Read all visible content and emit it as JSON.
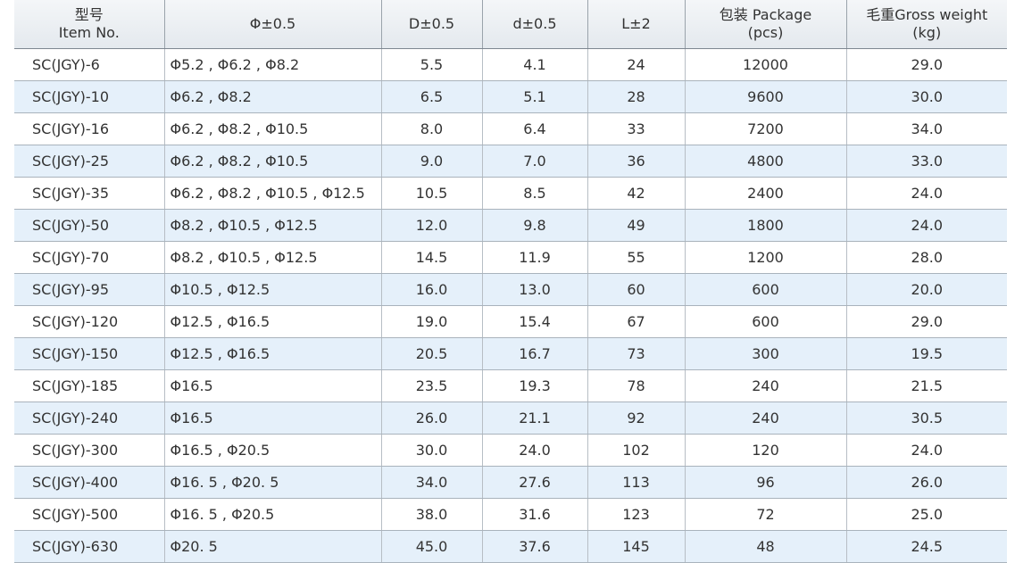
{
  "table": {
    "header": [
      [
        "型号",
        "Item No."
      ],
      [
        "Φ±0.5"
      ],
      [
        "D±0.5"
      ],
      [
        "d±0.5"
      ],
      [
        "L±2"
      ],
      [
        "包装 Package",
        "(pcs)"
      ],
      [
        "毛重Gross weight",
        "(kg)"
      ]
    ],
    "rows": [
      [
        "SC(JGY)-6",
        "Φ5.2 , Φ6.2 , Φ8.2",
        "5.5",
        "4.1",
        "24",
        "12000",
        "29.0"
      ],
      [
        "SC(JGY)-10",
        "Φ6.2 , Φ8.2",
        "6.5",
        "5.1",
        "28",
        "9600",
        "30.0"
      ],
      [
        "SC(JGY)-16",
        "Φ6.2 , Φ8.2 , Φ10.5",
        "8.0",
        "6.4",
        "33",
        "7200",
        "34.0"
      ],
      [
        "SC(JGY)-25",
        "Φ6.2 , Φ8.2 , Φ10.5",
        "9.0",
        "7.0",
        "36",
        "4800",
        "33.0"
      ],
      [
        "SC(JGY)-35",
        "Φ6.2 , Φ8.2 , Φ10.5 , Φ12.5",
        "10.5",
        "8.5",
        "42",
        "2400",
        "24.0"
      ],
      [
        "SC(JGY)-50",
        "Φ8.2 , Φ10.5 , Φ12.5",
        "12.0",
        "9.8",
        "49",
        "1800",
        "24.0"
      ],
      [
        "SC(JGY)-70",
        "Φ8.2 , Φ10.5 , Φ12.5",
        "14.5",
        "11.9",
        "55",
        "1200",
        "28.0"
      ],
      [
        "SC(JGY)-95",
        "Φ10.5 , Φ12.5",
        "16.0",
        "13.0",
        "60",
        "600",
        "20.0"
      ],
      [
        "SC(JGY)-120",
        "Φ12.5 , Φ16.5",
        "19.0",
        "15.4",
        "67",
        "600",
        "29.0"
      ],
      [
        "SC(JGY)-150",
        "Φ12.5 , Φ16.5",
        "20.5",
        "16.7",
        "73",
        "300",
        "19.5"
      ],
      [
        "SC(JGY)-185",
        "Φ16.5",
        "23.5",
        "19.3",
        "78",
        "240",
        "21.5"
      ],
      [
        "SC(JGY)-240",
        "Φ16.5",
        "26.0",
        "21.1",
        "92",
        "240",
        "30.5"
      ],
      [
        "SC(JGY)-300",
        "Φ16.5 , Φ20.5",
        "30.0",
        "24.0",
        "102",
        "120",
        "24.0"
      ],
      [
        "SC(JGY)-400",
        "Φ16. 5 , Φ20. 5",
        "34.0",
        "27.6",
        "113",
        "96",
        "26.0"
      ],
      [
        "SC(JGY)-500",
        "Φ16. 5 , Φ20.5",
        "38.0",
        "31.6",
        "123",
        "72",
        "25.0"
      ],
      [
        "SC(JGY)-630",
        "Φ20. 5",
        "45.0",
        "37.6",
        "145",
        "48",
        "24.5"
      ]
    ]
  }
}
